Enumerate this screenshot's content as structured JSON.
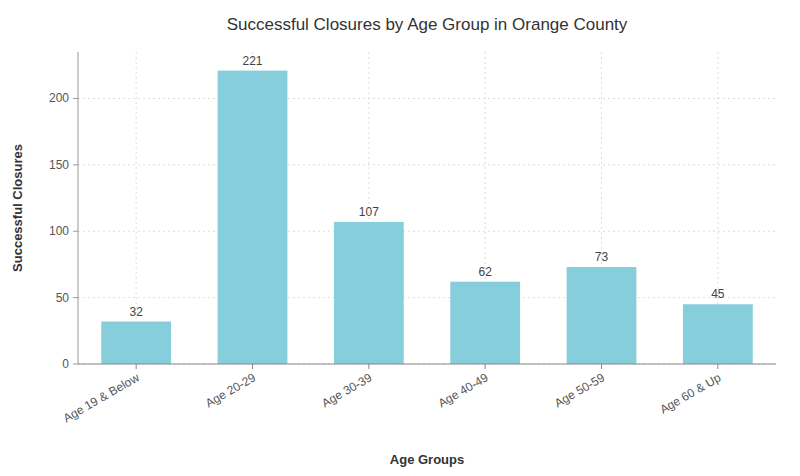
{
  "chart_data": {
    "type": "bar",
    "title": "Successful Closures by Age Group in Orange County",
    "xlabel": "Age Groups",
    "ylabel": "Successful Closures",
    "categories": [
      "Age 19 & Below",
      "Age 20-29",
      "Age 30-39",
      "Age 40-49",
      "Age 50-59",
      "Age 60 & Up"
    ],
    "values": [
      32,
      221,
      107,
      62,
      73,
      45
    ],
    "color": "#87CEDC",
    "ylim": [
      0,
      235
    ],
    "yticks": [
      0,
      50,
      100,
      150,
      200
    ],
    "grid": true,
    "data_labels": true
  }
}
